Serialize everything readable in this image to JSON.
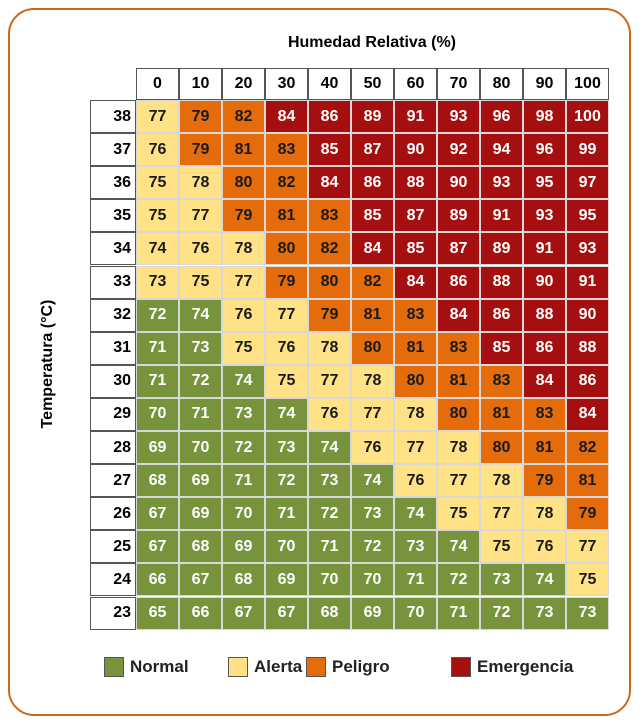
{
  "chart_data": {
    "type": "heatmap",
    "title": "",
    "xlabel": "Humedad Relativa (%)",
    "ylabel": "Temperatura (°C)",
    "x": [
      "0",
      "10",
      "20",
      "30",
      "40",
      "50",
      "60",
      "70",
      "80",
      "90",
      "100"
    ],
    "y": [
      "38",
      "37",
      "36",
      "35",
      "34",
      "33",
      "32",
      "31",
      "30",
      "29",
      "28",
      "27",
      "26",
      "25",
      "24",
      "23"
    ],
    "values": [
      [
        77,
        79,
        82,
        84,
        86,
        89,
        91,
        93,
        96,
        98,
        100
      ],
      [
        76,
        79,
        81,
        83,
        85,
        87,
        90,
        92,
        94,
        96,
        99
      ],
      [
        75,
        78,
        80,
        82,
        84,
        86,
        88,
        90,
        93,
        95,
        97
      ],
      [
        75,
        77,
        79,
        81,
        83,
        85,
        87,
        89,
        91,
        93,
        95
      ],
      [
        74,
        76,
        78,
        80,
        82,
        84,
        85,
        87,
        89,
        91,
        93
      ],
      [
        73,
        75,
        77,
        79,
        80,
        82,
        84,
        86,
        88,
        90,
        91
      ],
      [
        72,
        74,
        76,
        77,
        79,
        81,
        83,
        84,
        86,
        88,
        90
      ],
      [
        71,
        73,
        75,
        76,
        78,
        80,
        81,
        83,
        85,
        86,
        88
      ],
      [
        71,
        72,
        74,
        75,
        77,
        78,
        80,
        81,
        83,
        84,
        86
      ],
      [
        70,
        71,
        73,
        74,
        76,
        77,
        78,
        80,
        81,
        83,
        84
      ],
      [
        69,
        70,
        72,
        73,
        74,
        76,
        77,
        78,
        80,
        81,
        82
      ],
      [
        68,
        69,
        71,
        72,
        73,
        74,
        76,
        77,
        78,
        79,
        81
      ],
      [
        67,
        69,
        70,
        71,
        72,
        73,
        74,
        75,
        77,
        78,
        79
      ],
      [
        67,
        68,
        69,
        70,
        71,
        72,
        73,
        74,
        75,
        76,
        77
      ],
      [
        66,
        67,
        68,
        69,
        70,
        70,
        71,
        72,
        73,
        74,
        75
      ],
      [
        65,
        66,
        67,
        67,
        68,
        69,
        70,
        71,
        72,
        73,
        73
      ]
    ],
    "categories_map": [
      "AOOEEEEEEEE",
      "AOOOEEEEEEE",
      "AAOOEEEEEEE",
      "AAOOOEEEEEE",
      "AAAOOEEEEEE",
      "AAAOOOEEEEE",
      "NNAAOOOEEEE",
      "NNAAAOOOEEE",
      "NNNAAAOOOEE",
      "NNNNAAAOOOE",
      "NNNNNAAAOOO",
      "NNNNNNAAAOO",
      "NNNNNNNAAAO",
      "NNNNNNNNAAA",
      "NNNNNNNNNNA",
      "NNNNNNNNNNN"
    ],
    "legend": [
      {
        "key": "N",
        "label": "Normal",
        "color": "#77933c"
      },
      {
        "key": "A",
        "label": "Alerta",
        "color": "#ffe285"
      },
      {
        "key": "O",
        "label": "Peligro",
        "color": "#e46c0a"
      },
      {
        "key": "E",
        "label": "Emergencia",
        "color": "#a50f0f"
      }
    ],
    "text_colors": {
      "N": "#ffffff",
      "A": "#1a1a1a",
      "O": "#1a1a1a",
      "E": "#ffffff"
    },
    "legend_position": "bottom",
    "grid": true
  }
}
